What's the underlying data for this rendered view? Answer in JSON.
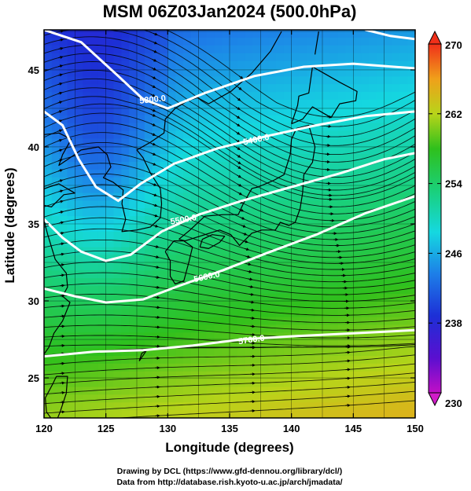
{
  "chart_data": {
    "type": "heatmap",
    "title": "MSM 06Z03Jan2024 (500.0hPa)",
    "xlabel": "Longitude (degrees)",
    "ylabel": "Latitude  (degrees)",
    "xlim": [
      120,
      150
    ],
    "ylim": [
      22.4,
      47.6
    ],
    "x_ticks": [
      120,
      125,
      130,
      135,
      140,
      145,
      150
    ],
    "y_ticks": [
      25,
      30,
      35,
      40,
      45
    ],
    "grid": true,
    "colorbar": {
      "range": [
        230,
        270
      ],
      "ticks": [
        230,
        238,
        246,
        254,
        262,
        270
      ],
      "placement": "right"
    },
    "contours": [
      {
        "level_label": "5300.0"
      },
      {
        "level_label": "5400.0"
      },
      {
        "level_label": "5500.0"
      },
      {
        "level_label": "5600.0"
      },
      {
        "level_label": "5700.0"
      }
    ],
    "colors": {
      "low": "#c10fc6",
      "mid_low": "#1d3fd6",
      "mid": "#15dac0",
      "mid_high": "#2fc01c",
      "high": "#f0461c"
    }
  },
  "footer": {
    "line1": "Drawing by DCL (https://www.gfd-dennou.org/library/dcl/)",
    "line2": "Data from http://database.rish.kyoto-u.ac.jp/arch/jmadata/"
  }
}
